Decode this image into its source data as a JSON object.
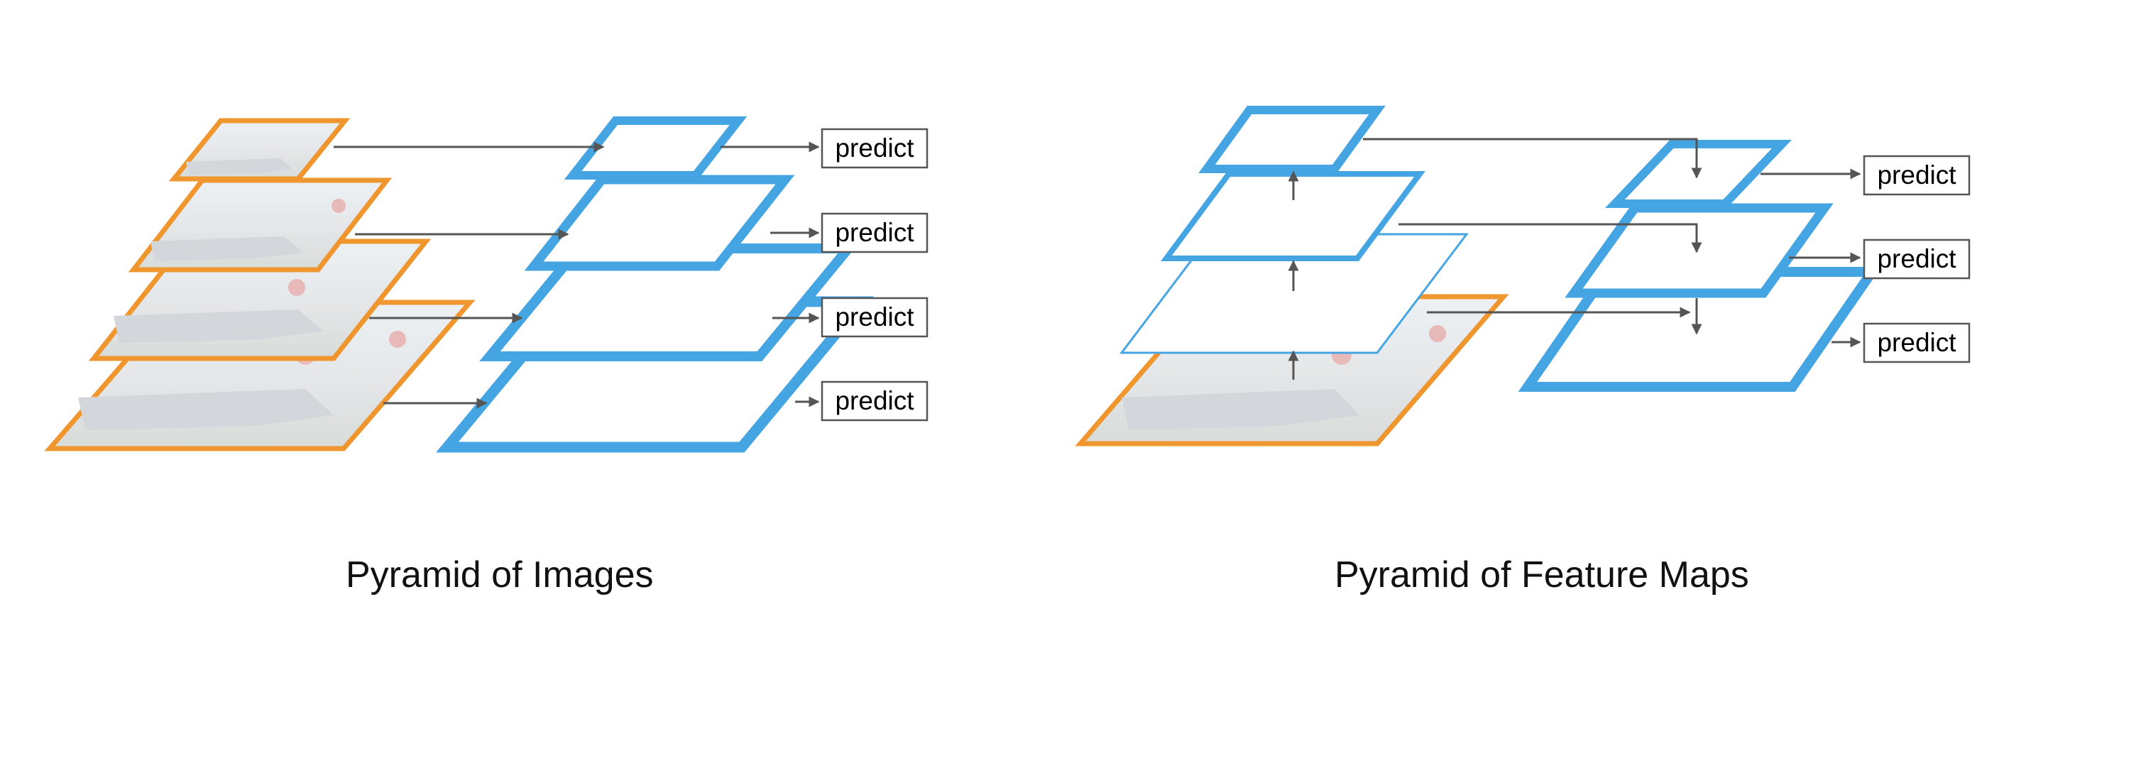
{
  "diagrams": [
    {
      "caption": "Pyramid of Images",
      "predict_labels": [
        "predict",
        "predict",
        "predict",
        "predict"
      ]
    },
    {
      "caption": "Pyramid of Feature Maps",
      "predict_labels": [
        "predict",
        "predict",
        "predict"
      ]
    }
  ],
  "colors": {
    "image_border": "#f0962e",
    "feature_map": "#45a5e2",
    "arrow": "#555555",
    "photo_fill": "#e3e5e7"
  }
}
